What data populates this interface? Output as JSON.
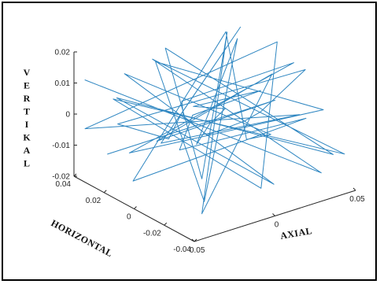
{
  "chart_data": {
    "type": "line",
    "projection": "3d",
    "title": "",
    "xlabel": "AXIAL",
    "ylabel": "HORIZONTAL",
    "zlabel": "VERTIKAL",
    "xlim": [
      -0.05,
      0.05
    ],
    "ylim": [
      -0.04,
      0.04
    ],
    "zlim": [
      -0.02,
      0.02
    ],
    "x_ticks": [
      "-0.05",
      "0",
      "0.05"
    ],
    "y_ticks": [
      "0.04",
      "0.02",
      "0",
      "-0.02",
      "-0.04"
    ],
    "z_ticks": [
      "0.02",
      "0.01",
      "0",
      "-0.01",
      "-0.02"
    ],
    "x_tick_values": [
      -0.05,
      0,
      0.05
    ],
    "y_tick_values": [
      0.04,
      0.02,
      0,
      -0.02,
      -0.04
    ],
    "z_tick_values": [
      0.02,
      0.01,
      0,
      -0.01,
      -0.02
    ],
    "line_color": "#2e86c1",
    "grid": false,
    "series": [
      {
        "values_note_none": "",
        "x": [
          -0.048,
          0.038,
          -0.02,
          0.045,
          -0.035,
          0.01,
          0.048,
          -0.045,
          0.02,
          -0.01,
          0.042,
          -0.03,
          0.005,
          -0.049,
          0.03,
          0.047,
          -0.015,
          0.025,
          -0.04,
          0.015,
          0.035,
          -0.025,
          0.044,
          -0.005,
          -0.042,
          0.028,
          0.012,
          -0.033,
          0.04,
          -0.018,
          0.049,
          -0.038,
          0.008,
          0.022,
          -0.046,
          0.033,
          -0.012,
          0.046,
          -0.028,
          0.018,
          -0.044,
          0.038,
          0.002,
          -0.022,
          0.031,
          -0.036,
          0.043,
          -0.008,
          0.014,
          -0.048
        ],
        "y": [
          0.035,
          -0.03,
          0.02,
          -0.038,
          0.03,
          -0.02,
          0.01,
          0.038,
          -0.035,
          0.025,
          0.028,
          -0.01,
          0.036,
          0.012,
          -0.028,
          0.02,
          -0.036,
          0.032,
          -0.022,
          0.038,
          -0.015,
          0.03,
          -0.025,
          0.034,
          -0.038,
          0.015,
          0.025,
          -0.032,
          0.036,
          -0.005,
          0.022,
          -0.026,
          0.032,
          -0.037,
          0.005,
          0.028,
          -0.034,
          0.012,
          0.03,
          -0.02,
          0.018,
          -0.038,
          0.035,
          -0.015,
          0.025,
          -0.03,
          0.008,
          0.03,
          -0.025,
          0.02
        ],
        "z": [
          0.012,
          -0.015,
          0.018,
          -0.008,
          0.005,
          -0.018,
          0.015,
          -0.005,
          0.008,
          -0.012,
          0.016,
          0.01,
          -0.016,
          0.004,
          0.019,
          -0.01,
          0.012,
          -0.017,
          0.014,
          -0.006,
          0.017,
          -0.014,
          0.003,
          0.011,
          -0.009,
          0.018,
          -0.016,
          0.013,
          -0.012,
          0.009,
          -0.004,
          0.015,
          -0.019,
          0.007,
          -0.013,
          0.016,
          0.005,
          -0.015,
          0.012,
          -0.018,
          0.01,
          -0.007,
          0.014,
          -0.011,
          0.017,
          -0.016,
          0.006,
          -0.013,
          0.011,
          -0.008
        ]
      }
    ]
  }
}
